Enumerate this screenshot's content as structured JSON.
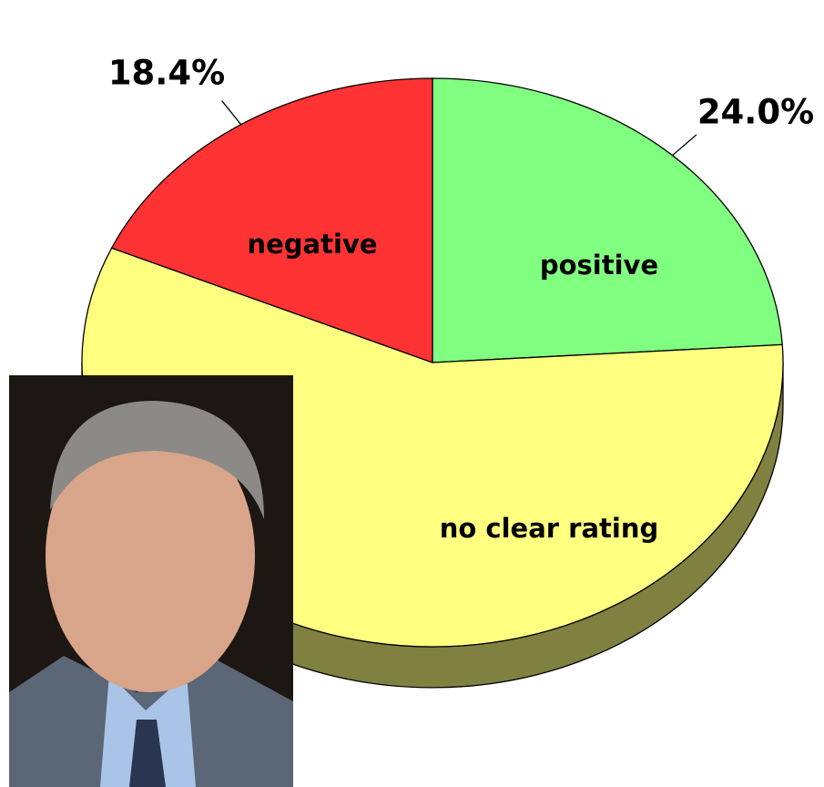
{
  "chart_data": {
    "type": "pie",
    "categories": [
      "positive",
      "no clear rating",
      "negative"
    ],
    "values": [
      24.0,
      57.6,
      18.4
    ],
    "value_labels": [
      "24.0%",
      null,
      "18.4%"
    ],
    "colors": [
      "#80ff80",
      "#ffff80",
      "#ff3333"
    ]
  }
}
